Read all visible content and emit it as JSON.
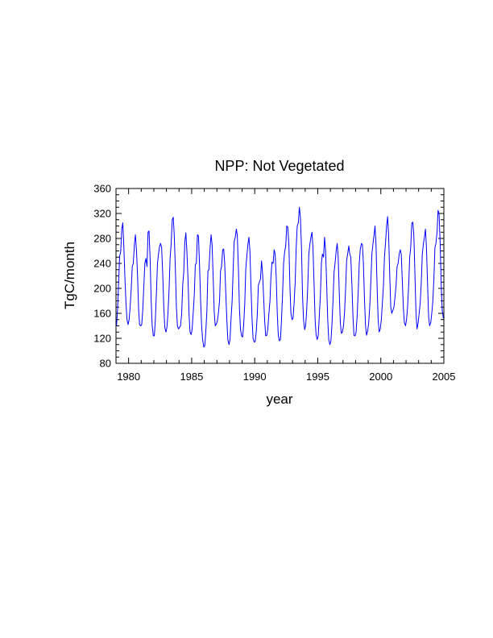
{
  "chart_data": {
    "type": "line",
    "title": "NPP: Not Vegetated",
    "xlabel": "year",
    "ylabel": "TgC/month",
    "xlim": [
      1979,
      2005
    ],
    "ylim": [
      80,
      360
    ],
    "xticks": [
      1980,
      1985,
      1990,
      1995,
      2000,
      2005
    ],
    "yticks": [
      80,
      120,
      160,
      200,
      240,
      280,
      320,
      360
    ],
    "grid": false,
    "line_color": "#0000ff",
    "series": [
      {
        "points": [
          [
            1979.04,
            140
          ],
          [
            1979.12,
            165
          ],
          [
            1979.21,
            210
          ],
          [
            1979.29,
            252
          ],
          [
            1979.37,
            258
          ],
          [
            1979.46,
            295
          ],
          [
            1979.54,
            305
          ],
          [
            1979.62,
            268
          ],
          [
            1979.71,
            215
          ],
          [
            1979.79,
            178
          ],
          [
            1979.87,
            150
          ],
          [
            1979.96,
            142
          ],
          [
            1980.04,
            150
          ],
          [
            1980.12,
            170
          ],
          [
            1980.21,
            200
          ],
          [
            1980.29,
            235
          ],
          [
            1980.37,
            240
          ],
          [
            1980.46,
            270
          ],
          [
            1980.54,
            286
          ],
          [
            1980.62,
            262
          ],
          [
            1980.71,
            220
          ],
          [
            1980.79,
            168
          ],
          [
            1980.87,
            142
          ],
          [
            1980.96,
            140
          ],
          [
            1981.04,
            142
          ],
          [
            1981.12,
            165
          ],
          [
            1981.21,
            205
          ],
          [
            1981.29,
            240
          ],
          [
            1981.37,
            248
          ],
          [
            1981.46,
            235
          ],
          [
            1981.54,
            290
          ],
          [
            1981.62,
            292
          ],
          [
            1981.71,
            245
          ],
          [
            1981.79,
            180
          ],
          [
            1981.87,
            140
          ],
          [
            1981.96,
            124
          ],
          [
            1982.04,
            124
          ],
          [
            1982.12,
            150
          ],
          [
            1982.21,
            195
          ],
          [
            1982.29,
            240
          ],
          [
            1982.37,
            255
          ],
          [
            1982.46,
            268
          ],
          [
            1982.54,
            272
          ],
          [
            1982.62,
            265
          ],
          [
            1982.71,
            220
          ],
          [
            1982.79,
            170
          ],
          [
            1982.87,
            138
          ],
          [
            1982.96,
            130
          ],
          [
            1983.04,
            138
          ],
          [
            1983.12,
            160
          ],
          [
            1983.21,
            198
          ],
          [
            1983.29,
            248
          ],
          [
            1983.37,
            270
          ],
          [
            1983.46,
            310
          ],
          [
            1983.54,
            314
          ],
          [
            1983.62,
            285
          ],
          [
            1983.71,
            230
          ],
          [
            1983.79,
            170
          ],
          [
            1983.87,
            140
          ],
          [
            1983.96,
            135
          ],
          [
            1984.04,
            138
          ],
          [
            1984.12,
            140
          ],
          [
            1984.21,
            160
          ],
          [
            1984.29,
            205
          ],
          [
            1984.37,
            225
          ],
          [
            1984.46,
            275
          ],
          [
            1984.54,
            289
          ],
          [
            1984.62,
            260
          ],
          [
            1984.71,
            215
          ],
          [
            1984.79,
            160
          ],
          [
            1984.87,
            130
          ],
          [
            1984.96,
            126
          ],
          [
            1985.04,
            135
          ],
          [
            1985.12,
            160
          ],
          [
            1985.21,
            190
          ],
          [
            1985.29,
            238
          ],
          [
            1985.37,
            240
          ],
          [
            1985.46,
            286
          ],
          [
            1985.54,
            284
          ],
          [
            1985.62,
            240
          ],
          [
            1985.71,
            180
          ],
          [
            1985.79,
            140
          ],
          [
            1985.87,
            118
          ],
          [
            1985.96,
            106
          ],
          [
            1986.04,
            108
          ],
          [
            1986.12,
            130
          ],
          [
            1986.21,
            165
          ],
          [
            1986.29,
            228
          ],
          [
            1986.37,
            230
          ],
          [
            1986.46,
            265
          ],
          [
            1986.54,
            286
          ],
          [
            1986.62,
            270
          ],
          [
            1986.71,
            215
          ],
          [
            1986.79,
            162
          ],
          [
            1986.87,
            140
          ],
          [
            1986.96,
            143
          ],
          [
            1987.04,
            148
          ],
          [
            1987.12,
            160
          ],
          [
            1987.21,
            180
          ],
          [
            1987.29,
            228
          ],
          [
            1987.37,
            235
          ],
          [
            1987.46,
            262
          ],
          [
            1987.54,
            263
          ],
          [
            1987.62,
            240
          ],
          [
            1987.71,
            190
          ],
          [
            1987.79,
            150
          ],
          [
            1987.87,
            118
          ],
          [
            1987.96,
            110
          ],
          [
            1988.04,
            118
          ],
          [
            1988.12,
            150
          ],
          [
            1988.21,
            180
          ],
          [
            1988.29,
            230
          ],
          [
            1988.37,
            275
          ],
          [
            1988.46,
            282
          ],
          [
            1988.54,
            295
          ],
          [
            1988.62,
            285
          ],
          [
            1988.71,
            230
          ],
          [
            1988.79,
            168
          ],
          [
            1988.87,
            135
          ],
          [
            1988.96,
            124
          ],
          [
            1989.04,
            122
          ],
          [
            1989.12,
            140
          ],
          [
            1989.21,
            175
          ],
          [
            1989.29,
            230
          ],
          [
            1989.37,
            250
          ],
          [
            1989.46,
            270
          ],
          [
            1989.54,
            282
          ],
          [
            1989.62,
            260
          ],
          [
            1989.71,
            200
          ],
          [
            1989.79,
            150
          ],
          [
            1989.87,
            120
          ],
          [
            1989.96,
            114
          ],
          [
            1990.04,
            115
          ],
          [
            1990.12,
            130
          ],
          [
            1990.21,
            160
          ],
          [
            1990.29,
            205
          ],
          [
            1990.37,
            210
          ],
          [
            1990.46,
            215
          ],
          [
            1990.54,
            244
          ],
          [
            1990.62,
            225
          ],
          [
            1990.71,
            185
          ],
          [
            1990.79,
            148
          ],
          [
            1990.87,
            124
          ],
          [
            1990.96,
            125
          ],
          [
            1991.04,
            135
          ],
          [
            1991.12,
            158
          ],
          [
            1991.21,
            180
          ],
          [
            1991.29,
            220
          ],
          [
            1991.37,
            242
          ],
          [
            1991.46,
            240
          ],
          [
            1991.54,
            262
          ],
          [
            1991.62,
            255
          ],
          [
            1991.71,
            215
          ],
          [
            1991.79,
            160
          ],
          [
            1991.87,
            125
          ],
          [
            1991.96,
            116
          ],
          [
            1992.04,
            118
          ],
          [
            1992.12,
            148
          ],
          [
            1992.21,
            190
          ],
          [
            1992.29,
            240
          ],
          [
            1992.37,
            258
          ],
          [
            1992.46,
            268
          ],
          [
            1992.54,
            300
          ],
          [
            1992.62,
            298
          ],
          [
            1992.71,
            270
          ],
          [
            1992.79,
            205
          ],
          [
            1992.87,
            160
          ],
          [
            1992.96,
            150
          ],
          [
            1993.04,
            152
          ],
          [
            1993.12,
            175
          ],
          [
            1993.21,
            210
          ],
          [
            1993.29,
            265
          ],
          [
            1993.37,
            300
          ],
          [
            1993.46,
            305
          ],
          [
            1993.54,
            330
          ],
          [
            1993.62,
            315
          ],
          [
            1993.71,
            265
          ],
          [
            1993.79,
            190
          ],
          [
            1993.87,
            150
          ],
          [
            1993.96,
            134
          ],
          [
            1994.04,
            140
          ],
          [
            1994.12,
            165
          ],
          [
            1994.21,
            205
          ],
          [
            1994.29,
            255
          ],
          [
            1994.37,
            270
          ],
          [
            1994.46,
            282
          ],
          [
            1994.54,
            290
          ],
          [
            1994.62,
            265
          ],
          [
            1994.71,
            205
          ],
          [
            1994.79,
            150
          ],
          [
            1994.87,
            125
          ],
          [
            1994.96,
            118
          ],
          [
            1995.04,
            125
          ],
          [
            1995.12,
            155
          ],
          [
            1995.21,
            190
          ],
          [
            1995.29,
            240
          ],
          [
            1995.37,
            255
          ],
          [
            1995.46,
            250
          ],
          [
            1995.54,
            282
          ],
          [
            1995.62,
            260
          ],
          [
            1995.71,
            205
          ],
          [
            1995.79,
            150
          ],
          [
            1995.87,
            118
          ],
          [
            1995.96,
            110
          ],
          [
            1996.04,
            115
          ],
          [
            1996.12,
            140
          ],
          [
            1996.21,
            180
          ],
          [
            1996.29,
            225
          ],
          [
            1996.37,
            240
          ],
          [
            1996.46,
            260
          ],
          [
            1996.54,
            272
          ],
          [
            1996.62,
            250
          ],
          [
            1996.71,
            190
          ],
          [
            1996.79,
            145
          ],
          [
            1996.87,
            128
          ],
          [
            1996.96,
            130
          ],
          [
            1997.04,
            140
          ],
          [
            1997.12,
            160
          ],
          [
            1997.21,
            200
          ],
          [
            1997.29,
            245
          ],
          [
            1997.37,
            255
          ],
          [
            1997.46,
            268
          ],
          [
            1997.54,
            255
          ],
          [
            1997.62,
            250
          ],
          [
            1997.71,
            205
          ],
          [
            1997.79,
            155
          ],
          [
            1997.87,
            125
          ],
          [
            1997.96,
            124
          ],
          [
            1998.04,
            130
          ],
          [
            1998.12,
            155
          ],
          [
            1998.21,
            195
          ],
          [
            1998.29,
            240
          ],
          [
            1998.37,
            262
          ],
          [
            1998.46,
            272
          ],
          [
            1998.54,
            270
          ],
          [
            1998.62,
            240
          ],
          [
            1998.71,
            180
          ],
          [
            1998.79,
            140
          ],
          [
            1998.87,
            125
          ],
          [
            1998.96,
            132
          ],
          [
            1999.04,
            145
          ],
          [
            1999.12,
            170
          ],
          [
            1999.21,
            210
          ],
          [
            1999.29,
            255
          ],
          [
            1999.37,
            270
          ],
          [
            1999.46,
            285
          ],
          [
            1999.54,
            300
          ],
          [
            1999.62,
            270
          ],
          [
            1999.71,
            200
          ],
          [
            1999.79,
            150
          ],
          [
            1999.87,
            130
          ],
          [
            1999.96,
            135
          ],
          [
            2000.04,
            150
          ],
          [
            2000.12,
            175
          ],
          [
            2000.21,
            205
          ],
          [
            2000.29,
            250
          ],
          [
            2000.37,
            272
          ],
          [
            2000.46,
            300
          ],
          [
            2000.54,
            315
          ],
          [
            2000.62,
            285
          ],
          [
            2000.71,
            220
          ],
          [
            2000.79,
            170
          ],
          [
            2000.87,
            160
          ],
          [
            2000.96,
            165
          ],
          [
            2001.04,
            170
          ],
          [
            2001.12,
            185
          ],
          [
            2001.21,
            205
          ],
          [
            2001.29,
            235
          ],
          [
            2001.37,
            240
          ],
          [
            2001.46,
            255
          ],
          [
            2001.54,
            262
          ],
          [
            2001.62,
            255
          ],
          [
            2001.71,
            210
          ],
          [
            2001.79,
            168
          ],
          [
            2001.87,
            145
          ],
          [
            2001.96,
            140
          ],
          [
            2002.04,
            150
          ],
          [
            2002.12,
            170
          ],
          [
            2002.21,
            205
          ],
          [
            2002.29,
            250
          ],
          [
            2002.37,
            265
          ],
          [
            2002.46,
            305
          ],
          [
            2002.54,
            306
          ],
          [
            2002.62,
            285
          ],
          [
            2002.71,
            220
          ],
          [
            2002.79,
            160
          ],
          [
            2002.87,
            135
          ],
          [
            2002.96,
            145
          ],
          [
            2003.04,
            160
          ],
          [
            2003.12,
            175
          ],
          [
            2003.21,
            210
          ],
          [
            2003.29,
            255
          ],
          [
            2003.37,
            270
          ],
          [
            2003.46,
            282
          ],
          [
            2003.54,
            295
          ],
          [
            2003.62,
            265
          ],
          [
            2003.71,
            205
          ],
          [
            2003.79,
            155
          ],
          [
            2003.87,
            140
          ],
          [
            2003.96,
            145
          ],
          [
            2004.04,
            160
          ],
          [
            2004.12,
            178
          ],
          [
            2004.21,
            215
          ],
          [
            2004.29,
            265
          ],
          [
            2004.37,
            272
          ],
          [
            2004.46,
            290
          ],
          [
            2004.54,
            325
          ],
          [
            2004.62,
            320
          ],
          [
            2004.71,
            270
          ],
          [
            2004.79,
            205
          ],
          [
            2004.87,
            165
          ],
          [
            2004.96,
            152
          ]
        ]
      }
    ]
  }
}
